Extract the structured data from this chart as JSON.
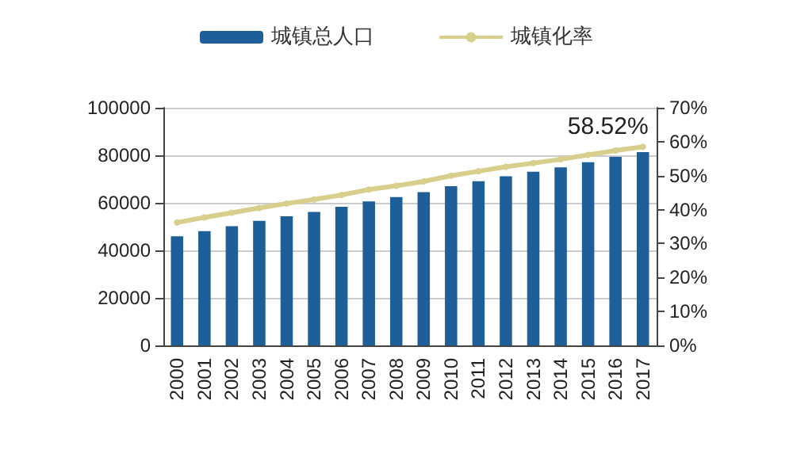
{
  "chart_data": {
    "type": "bar",
    "categories": [
      "2000",
      "2001",
      "2002",
      "2003",
      "2004",
      "2005",
      "2006",
      "2007",
      "2008",
      "2009",
      "2010",
      "2011",
      "2012",
      "2013",
      "2014",
      "2015",
      "2016",
      "2017"
    ],
    "series": [
      {
        "name": "城镇总人口",
        "color": "#1f5f99",
        "values": [
          45900,
          48100,
          50200,
          52400,
          54300,
          56200,
          58300,
          60600,
          62400,
          64500,
          67000,
          69100,
          71200,
          73100,
          74900,
          77100,
          79300,
          81300
        ]
      },
      {
        "name": "城镇化率",
        "type": "line",
        "axis": "y2",
        "color": "#d8cf8c",
        "values": [
          36.2,
          37.7,
          39.1,
          40.5,
          41.8,
          43.0,
          44.3,
          45.9,
          47.0,
          48.3,
          50.0,
          51.3,
          52.6,
          53.7,
          54.8,
          56.1,
          57.4,
          58.52
        ],
        "value_labels": [
          null,
          null,
          null,
          null,
          null,
          null,
          null,
          null,
          null,
          null,
          null,
          null,
          null,
          null,
          null,
          null,
          null,
          "58.52%"
        ]
      }
    ],
    "ylim": [
      0,
      100000
    ],
    "yticks": [
      0,
      20000,
      40000,
      60000,
      80000,
      100000
    ],
    "y2lim": [
      0,
      70
    ],
    "y2ticks": [
      {
        "value": 0,
        "label": "0%"
      },
      {
        "value": 10,
        "label": "10%"
      },
      {
        "value": 20,
        "label": "20%"
      },
      {
        "value": 30,
        "label": "30%"
      },
      {
        "value": 40,
        "label": "40%"
      },
      {
        "value": 50,
        "label": "50%"
      },
      {
        "value": 60,
        "label": "60%"
      },
      {
        "value": 70,
        "label": "70%"
      }
    ],
    "grid": "y",
    "legend": "top",
    "marker": "circle"
  }
}
